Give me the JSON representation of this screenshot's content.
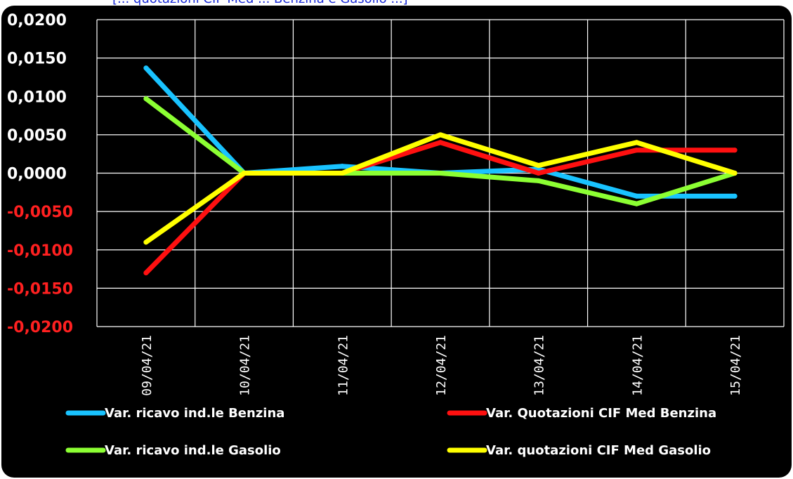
{
  "top_title": "[... quotazioni CIF Med ... Benzina e Gasolio ...]",
  "colors": {
    "background": "#000000",
    "grid": "#ffffff",
    "positive_tick": "#ffffff",
    "negative_tick": "#ff2020"
  },
  "chart_data": {
    "type": "line",
    "x": [
      "09/04/21",
      "10/04/21",
      "11/04/21",
      "12/04/21",
      "13/04/21",
      "14/04/21",
      "15/04/21"
    ],
    "ylim": [
      -0.02,
      0.02
    ],
    "yticks": [
      0.02,
      0.015,
      0.01,
      0.005,
      0.0,
      -0.005,
      -0.01,
      -0.015,
      -0.02
    ],
    "ytick_labels": [
      "0,0200",
      "0,0150",
      "0,0100",
      "0,0050",
      "0,0000",
      "-0,0050",
      "-0,0100",
      "-0,0150",
      "-0,0200"
    ],
    "grid": true,
    "legend_position": "bottom",
    "series": [
      {
        "name": "Var. ricavo ind.le Benzina",
        "color": "#19c3ff",
        "values": [
          0.0137,
          0.0,
          0.0009,
          0.0,
          0.0005,
          -0.003,
          -0.003
        ]
      },
      {
        "name": "Var. Quotazioni CIF Med Benzina",
        "color": "#ff1010",
        "values": [
          -0.013,
          0.0,
          0.0,
          0.004,
          0.0,
          0.003,
          0.003
        ]
      },
      {
        "name": "Var. ricavo ind.le Gasolio",
        "color": "#8cff33",
        "values": [
          0.0097,
          0.0,
          0.0,
          0.0,
          -0.001,
          -0.004,
          0.0
        ]
      },
      {
        "name": "Var. quotazioni CIF Med Gasolio",
        "color": "#ffff00",
        "values": [
          -0.009,
          0.0,
          0.0,
          0.005,
          0.001,
          0.004,
          0.0
        ]
      }
    ]
  }
}
